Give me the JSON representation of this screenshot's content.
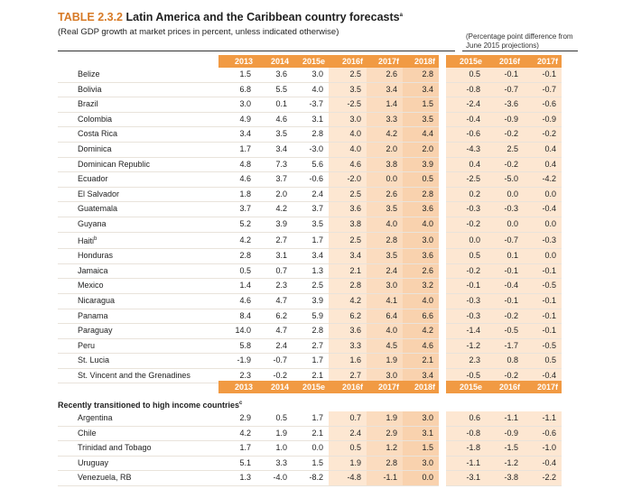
{
  "title": {
    "number": "TABLE 2.3.2",
    "text": "Latin America and the Caribbean country forecasts",
    "footnote_mark": "a"
  },
  "subtitle": "(Real GDP growth at market prices in percent, unless indicated otherwise)",
  "note": "(Percentage point difference from June 2015 projections)",
  "columns_main": [
    "2013",
    "2014",
    "2015e",
    "2016f",
    "2017f",
    "2018f"
  ],
  "columns_diff": [
    "2015e",
    "2016f",
    "2017f"
  ],
  "rows": [
    {
      "country": "Belize",
      "v": [
        "1.5",
        "3.6",
        "3.0",
        "2.5",
        "2.6",
        "2.8"
      ],
      "d": [
        "0.5",
        "-0.1",
        "-0.1"
      ]
    },
    {
      "country": "Bolivia",
      "v": [
        "6.8",
        "5.5",
        "4.0",
        "3.5",
        "3.4",
        "3.4"
      ],
      "d": [
        "-0.8",
        "-0.7",
        "-0.7"
      ]
    },
    {
      "country": "Brazil",
      "v": [
        "3.0",
        "0.1",
        "-3.7",
        "-2.5",
        "1.4",
        "1.5"
      ],
      "d": [
        "-2.4",
        "-3.6",
        "-0.6"
      ]
    },
    {
      "country": "Colombia",
      "v": [
        "4.9",
        "4.6",
        "3.1",
        "3.0",
        "3.3",
        "3.5"
      ],
      "d": [
        "-0.4",
        "-0.9",
        "-0.9"
      ]
    },
    {
      "country": "Costa Rica",
      "v": [
        "3.4",
        "3.5",
        "2.8",
        "4.0",
        "4.2",
        "4.4"
      ],
      "d": [
        "-0.6",
        "-0.2",
        "-0.2"
      ]
    },
    {
      "country": "Dominica",
      "v": [
        "1.7",
        "3.4",
        "-3.0",
        "4.0",
        "2.0",
        "2.0"
      ],
      "d": [
        "-4.3",
        "2.5",
        "0.4"
      ]
    },
    {
      "country": "Dominican Republic",
      "v": [
        "4.8",
        "7.3",
        "5.6",
        "4.6",
        "3.8",
        "3.9"
      ],
      "d": [
        "0.4",
        "-0.2",
        "0.4"
      ]
    },
    {
      "country": "Ecuador",
      "v": [
        "4.6",
        "3.7",
        "-0.6",
        "-2.0",
        "0.0",
        "0.5"
      ],
      "d": [
        "-2.5",
        "-5.0",
        "-4.2"
      ]
    },
    {
      "country": "El Salvador",
      "v": [
        "1.8",
        "2.0",
        "2.4",
        "2.5",
        "2.6",
        "2.8"
      ],
      "d": [
        "0.2",
        "0.0",
        "0.0"
      ]
    },
    {
      "country": "Guatemala",
      "v": [
        "3.7",
        "4.2",
        "3.7",
        "3.6",
        "3.5",
        "3.6"
      ],
      "d": [
        "-0.3",
        "-0.3",
        "-0.4"
      ]
    },
    {
      "country": "Guyana",
      "v": [
        "5.2",
        "3.9",
        "3.5",
        "3.8",
        "4.0",
        "4.0"
      ],
      "d": [
        "-0.2",
        "0.0",
        "0.0"
      ]
    },
    {
      "country": "Haiti",
      "mark": "b",
      "v": [
        "4.2",
        "2.7",
        "1.7",
        "2.5",
        "2.8",
        "3.0"
      ],
      "d": [
        "0.0",
        "-0.7",
        "-0.3"
      ]
    },
    {
      "country": "Honduras",
      "v": [
        "2.8",
        "3.1",
        "3.4",
        "3.4",
        "3.5",
        "3.6"
      ],
      "d": [
        "0.5",
        "0.1",
        "0.0"
      ]
    },
    {
      "country": "Jamaica",
      "v": [
        "0.5",
        "0.7",
        "1.3",
        "2.1",
        "2.4",
        "2.6"
      ],
      "d": [
        "-0.2",
        "-0.1",
        "-0.1"
      ]
    },
    {
      "country": "Mexico",
      "v": [
        "1.4",
        "2.3",
        "2.5",
        "2.8",
        "3.0",
        "3.2"
      ],
      "d": [
        "-0.1",
        "-0.4",
        "-0.5"
      ]
    },
    {
      "country": "Nicaragua",
      "v": [
        "4.6",
        "4.7",
        "3.9",
        "4.2",
        "4.1",
        "4.0"
      ],
      "d": [
        "-0.3",
        "-0.1",
        "-0.1"
      ]
    },
    {
      "country": "Panama",
      "v": [
        "8.4",
        "6.2",
        "5.9",
        "6.2",
        "6.4",
        "6.6"
      ],
      "d": [
        "-0.3",
        "-0.2",
        "-0.1"
      ]
    },
    {
      "country": "Paraguay",
      "v": [
        "14.0",
        "4.7",
        "2.8",
        "3.6",
        "4.0",
        "4.2"
      ],
      "d": [
        "-1.4",
        "-0.5",
        "-0.1"
      ]
    },
    {
      "country": "Peru",
      "v": [
        "5.8",
        "2.4",
        "2.7",
        "3.3",
        "4.5",
        "4.6"
      ],
      "d": [
        "-1.2",
        "-1.7",
        "-0.5"
      ]
    },
    {
      "country": "St. Lucia",
      "v": [
        "-1.9",
        "-0.7",
        "1.7",
        "1.6",
        "1.9",
        "2.1"
      ],
      "d": [
        "2.3",
        "0.8",
        "0.5"
      ]
    },
    {
      "country": "St. Vincent and the Grenadines",
      "v": [
        "2.3",
        "-0.2",
        "2.1",
        "2.7",
        "3.0",
        "3.4"
      ],
      "d": [
        "-0.5",
        "-0.2",
        "-0.4"
      ]
    }
  ],
  "section2": {
    "label": "Recently transitioned to high income countries",
    "footnote_mark": "c",
    "rows": [
      {
        "country": "Argentina",
        "v": [
          "2.9",
          "0.5",
          "1.7",
          "0.7",
          "1.9",
          "3.0"
        ],
        "d": [
          "0.6",
          "-1.1",
          "-1.1"
        ]
      },
      {
        "country": "Chile",
        "v": [
          "4.2",
          "1.9",
          "2.1",
          "2.4",
          "2.9",
          "3.1"
        ],
        "d": [
          "-0.8",
          "-0.9",
          "-0.6"
        ]
      },
      {
        "country": "Trinidad and Tobago",
        "v": [
          "1.7",
          "1.0",
          "0.0",
          "0.5",
          "1.2",
          "1.5"
        ],
        "d": [
          "-1.8",
          "-1.5",
          "-1.0"
        ]
      },
      {
        "country": "Uruguay",
        "v": [
          "5.1",
          "3.3",
          "1.5",
          "1.9",
          "2.8",
          "3.0"
        ],
        "d": [
          "-1.1",
          "-1.2",
          "-0.4"
        ]
      },
      {
        "country": "Venezuela, RB",
        "v": [
          "1.3",
          "-4.0",
          "-8.2",
          "-4.8",
          "-1.1",
          "0.0"
        ],
        "d": [
          "-3.1",
          "-3.8",
          "-2.2"
        ]
      }
    ]
  },
  "colors": {
    "header": "#f19a43",
    "title_number": "#d77a26"
  }
}
